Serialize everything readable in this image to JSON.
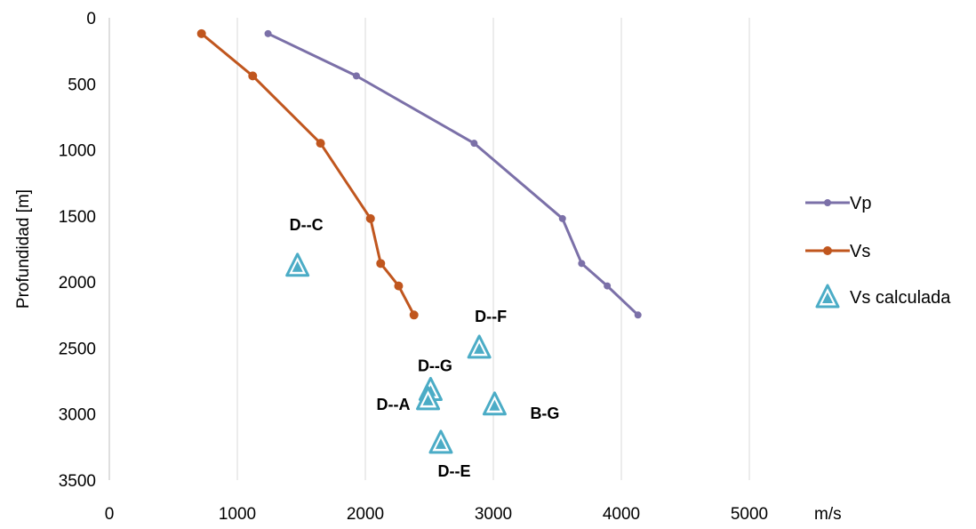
{
  "chart_data": {
    "type": "scatter",
    "title": "",
    "xlabel": "m/s",
    "ylabel": "Profundidad [m]",
    "xlim": [
      0,
      5000
    ],
    "ylim": [
      0,
      3500
    ],
    "y_inverted": true,
    "x_ticks": [
      "0",
      "1000",
      "2000",
      "3000",
      "4000",
      "5000"
    ],
    "y_ticks": [
      "0",
      "500",
      "1000",
      "1500",
      "2000",
      "2500",
      "3000",
      "3500"
    ],
    "grid": "vertical",
    "legend_position": "right",
    "series": [
      {
        "name": "Vp",
        "kind": "line",
        "color": "#7b70a8",
        "points": [
          {
            "x": 1240,
            "y": 120
          },
          {
            "x": 1930,
            "y": 440
          },
          {
            "x": 2850,
            "y": 950
          },
          {
            "x": 3540,
            "y": 1520
          },
          {
            "x": 3690,
            "y": 1860
          },
          {
            "x": 3890,
            "y": 2030
          },
          {
            "x": 4130,
            "y": 2250
          }
        ]
      },
      {
        "name": "Vs",
        "kind": "line",
        "color": "#c0561e",
        "points": [
          {
            "x": 720,
            "y": 120
          },
          {
            "x": 1120,
            "y": 440
          },
          {
            "x": 1650,
            "y": 950
          },
          {
            "x": 2040,
            "y": 1520
          },
          {
            "x": 2120,
            "y": 1860
          },
          {
            "x": 2260,
            "y": 2030
          },
          {
            "x": 2380,
            "y": 2250
          }
        ]
      },
      {
        "name": "Vs calculada",
        "kind": "marker",
        "color": "#4bacc6",
        "points": [
          {
            "x": 1470,
            "y": 1890,
            "label": "D--C"
          },
          {
            "x": 2890,
            "y": 2510,
            "label": "D--F"
          },
          {
            "x": 2510,
            "y": 2830,
            "label": "D--G"
          },
          {
            "x": 2490,
            "y": 2900,
            "label": "D--A"
          },
          {
            "x": 3010,
            "y": 2940,
            "label": "B-G"
          },
          {
            "x": 2590,
            "y": 3230,
            "label": "D--E"
          }
        ]
      }
    ]
  }
}
